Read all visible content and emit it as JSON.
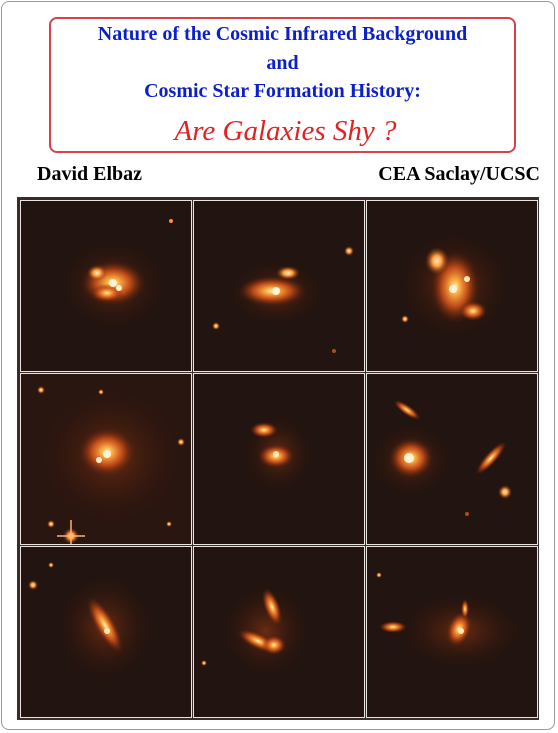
{
  "header": {
    "line1": "Nature of the Cosmic Infrared Background",
    "line2": "and",
    "line3": "Cosmic Star Formation History:",
    "subtitle": "Are Galaxies Shy ?"
  },
  "authors": {
    "left": "David Elbaz",
    "right": "CEA Saclay/UCSC"
  },
  "colors": {
    "title_blue": "#0c1fc9",
    "subtitle_red": "#e02222",
    "frame_red": "#d8414a",
    "galaxy_glow": "#ff7a2a"
  }
}
